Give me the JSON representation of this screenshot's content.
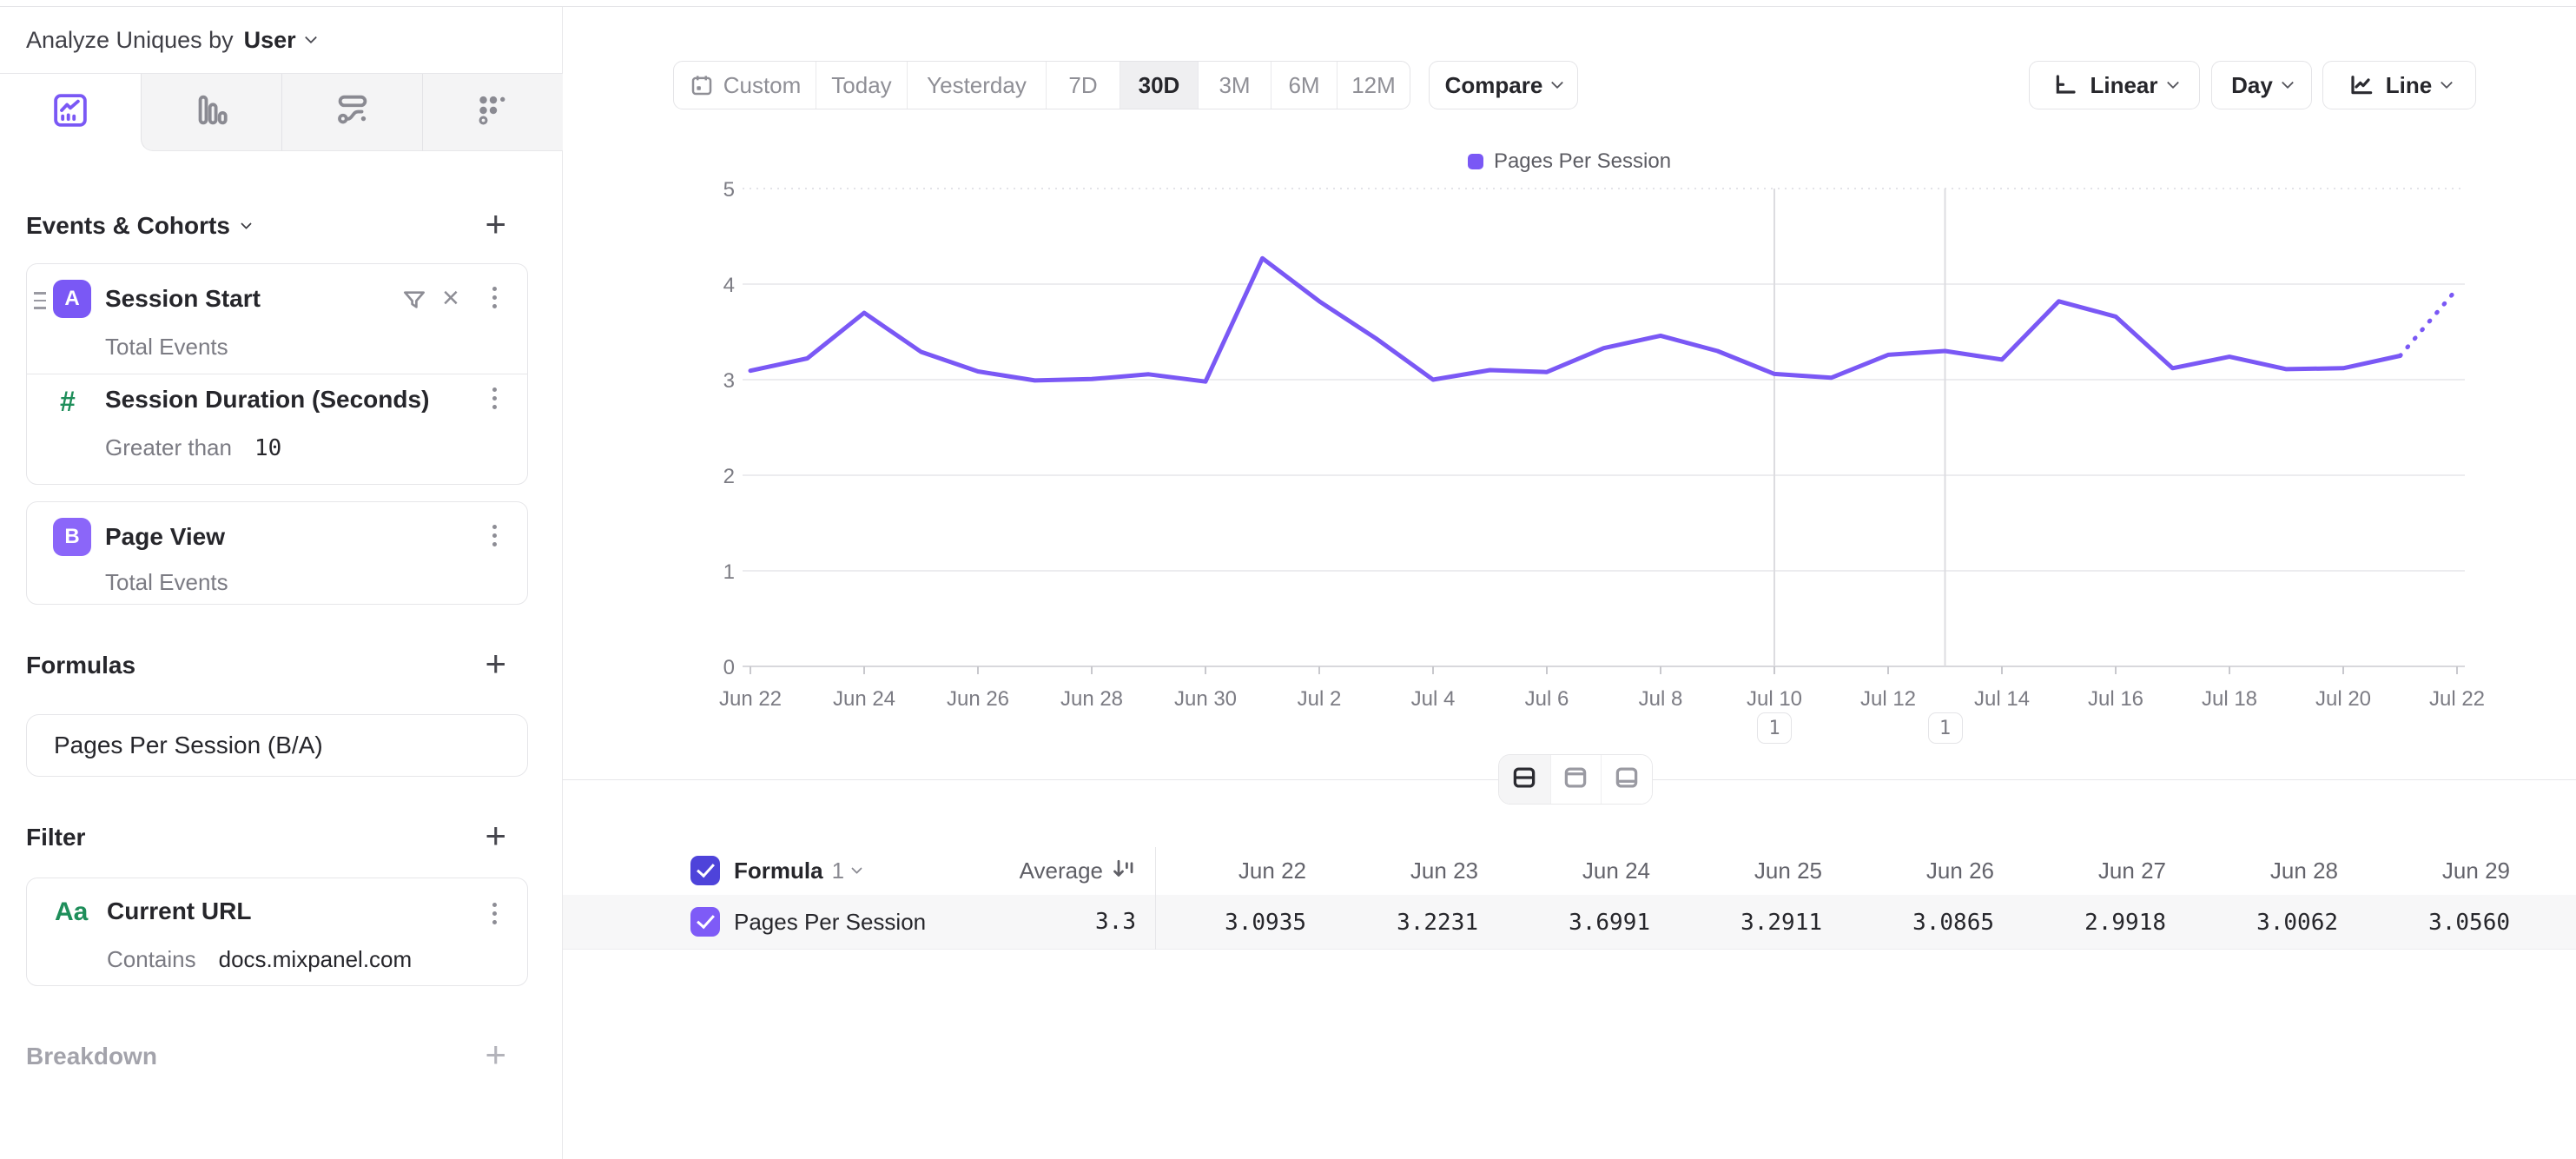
{
  "topbar": {
    "analyze_label": "Analyze Uniques by",
    "analyze_value": "User"
  },
  "sidebar": {
    "events_section_title": "Events & Cohorts",
    "session_start": {
      "badge": "A",
      "name": "Session Start",
      "measure": "Total Events"
    },
    "session_duration": {
      "icon": "#",
      "name": "Session Duration (Seconds)",
      "operator": "Greater than",
      "value": "10"
    },
    "page_view": {
      "badge": "B",
      "name": "Page View",
      "measure": "Total Events"
    },
    "formulas_section_title": "Formulas",
    "formula_name": "Pages Per Session (B/A)",
    "filter_section_title": "Filter",
    "filter": {
      "icon": "Aa",
      "name": "Current URL",
      "operator": "Contains",
      "value": "docs.mixpanel.com"
    },
    "breakdown_section_title": "Breakdown"
  },
  "toolbar": {
    "date_ranges": [
      "Custom",
      "Today",
      "Yesterday",
      "7D",
      "30D",
      "3M",
      "6M",
      "12M"
    ],
    "selected_range": "30D",
    "compare_label": "Compare",
    "scale_label": "Linear",
    "interval_label": "Day",
    "chart_type_label": "Line"
  },
  "chart_data": {
    "type": "line",
    "title": "",
    "xlabel": "",
    "ylabel": "",
    "x": [
      "Jun 22",
      "Jun 23",
      "Jun 24",
      "Jun 25",
      "Jun 26",
      "Jun 27",
      "Jun 28",
      "Jun 29",
      "Jun 30",
      "Jul 1",
      "Jul 2",
      "Jul 3",
      "Jul 4",
      "Jul 5",
      "Jul 6",
      "Jul 7",
      "Jul 8",
      "Jul 9",
      "Jul 10",
      "Jul 11",
      "Jul 12",
      "Jul 13",
      "Jul 14",
      "Jul 15",
      "Jul 16",
      "Jul 17",
      "Jul 18",
      "Jul 19",
      "Jul 20",
      "Jul 21",
      "Jul 22"
    ],
    "x_tick_step": 2,
    "series": [
      {
        "name": "Pages Per Session",
        "color": "#7A58F5",
        "values": [
          3.0935,
          3.2231,
          3.6991,
          3.2911,
          3.0865,
          2.9918,
          3.0062,
          3.056,
          2.98,
          4.27,
          3.82,
          3.43,
          3.0,
          3.1,
          3.08,
          3.33,
          3.46,
          3.3,
          3.06,
          3.02,
          3.26,
          3.3,
          3.21,
          3.82,
          3.66,
          3.12,
          3.24,
          3.11,
          3.12,
          3.25,
          3.95
        ]
      }
    ],
    "last_segment_style": "dotted",
    "ylim": [
      0,
      5
    ],
    "yticks": [
      0,
      1,
      2,
      3,
      4,
      5
    ],
    "grid": true,
    "legend_position": "top-center",
    "annotations": [
      {
        "x": "Jul 10",
        "label": "1"
      },
      {
        "x": "Jul 13",
        "label": "1"
      }
    ]
  },
  "view_toggle": {
    "options": [
      "split",
      "chart-only",
      "table-only"
    ],
    "selected": "split"
  },
  "table": {
    "group_label": "Formula",
    "group_number": "1",
    "average_label": "Average",
    "columns": [
      "Jun 22",
      "Jun 23",
      "Jun 24",
      "Jun 25",
      "Jun 26",
      "Jun 27",
      "Jun 28",
      "Jun 29"
    ],
    "rows": [
      {
        "name": "Pages Per Session",
        "average": "3.3",
        "values": [
          "3.0935",
          "3.2231",
          "3.6991",
          "3.2911",
          "3.0865",
          "2.9918",
          "3.0062",
          "3.0560"
        ]
      }
    ]
  }
}
